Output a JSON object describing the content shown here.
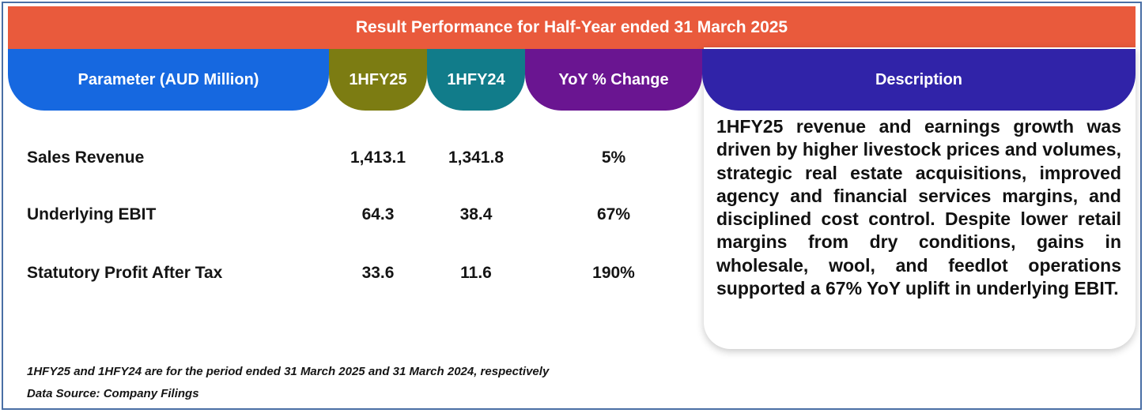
{
  "title": "Result Performance for Half-Year ended 31 March 2025",
  "headers": {
    "parameter": "Parameter (AUD Million)",
    "h25": "1HFY25",
    "h24": "1HFY24",
    "yoy": "YoY % Change",
    "description": "Description"
  },
  "rows": [
    {
      "parameter": "Sales Revenue",
      "h25": "1,413.1",
      "h24": "1,341.8",
      "yoy": "5%"
    },
    {
      "parameter": "Underlying EBIT",
      "h25": "64.3",
      "h24": "38.4",
      "yoy": "67%"
    },
    {
      "parameter": "Statutory Profit After Tax",
      "h25": "33.6",
      "h24": "11.6",
      "yoy": "190%"
    }
  ],
  "description": "1HFY25 revenue and earnings growth was driven by higher livestock prices and volumes, strategic real estate acquisitions, improved agency and financial services margins, and disciplined cost control. Despite lower retail margins from dry conditions, gains in wholesale, wool, and feedlot operations supported a 67% YoY uplift in underlying EBIT.",
  "notes": {
    "period": "1HFY25 and 1HFY24 are for the period ended 31 March 2025 and 31 March 2024, respectively",
    "source": "Data Source: Company Filings"
  },
  "colors": {
    "title_bar": "#e95a3c",
    "parameter_header": "#1668e0",
    "h25_header": "#7c7c12",
    "h24_header": "#117c8a",
    "yoy_header": "#6a1591",
    "description_header": "#3023a8"
  }
}
